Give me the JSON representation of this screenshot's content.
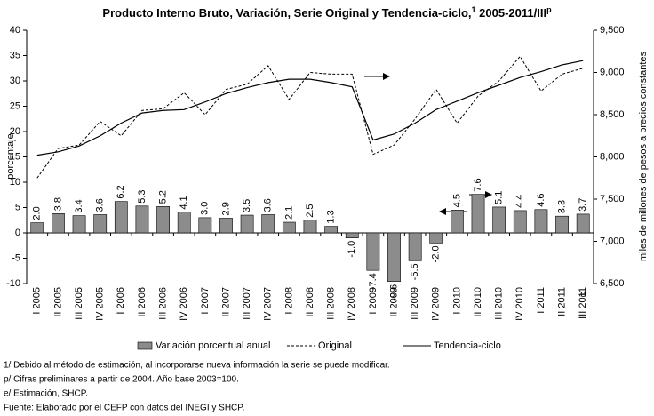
{
  "chart_data": {
    "type": "bar",
    "title": [
      "Producto Interno Bruto, Variación, Serie Original y Tendencia-ciclo,",
      "1",
      " 2005-2011/III",
      "p"
    ],
    "categories": [
      "I 2005",
      "II 2005",
      "III 2005",
      "IV 2005",
      "I 2006",
      "II 2006",
      "III 2006",
      "IV 2006",
      "I 2007",
      "II 2007",
      "III 2007",
      "IV 2007",
      "I 2008",
      "II 2008",
      "III 2008",
      "IV 2008",
      "I 2009",
      "II 2009",
      "III 2009",
      "IV 2009",
      "I 2010",
      "II 2010",
      "III 2010",
      "IV 2010",
      "I 2011",
      "II 2011",
      "III 2011"
    ],
    "annotation": "e",
    "ylabel": "porcentaje",
    "y2label": "miles de millones de pesos a precios constantes",
    "ylim": [
      -10,
      40
    ],
    "yticks": [
      -10,
      -5,
      0,
      5,
      10,
      15,
      20,
      25,
      30,
      35,
      40
    ],
    "y2lim": [
      6500,
      9500
    ],
    "y2ticks": [
      {
        "value": 6500,
        "label": "6,500"
      },
      {
        "value": 7000,
        "label": "7,000"
      },
      {
        "value": 7500,
        "label": "7,500"
      },
      {
        "value": 8000,
        "label": "8,000"
      },
      {
        "value": 8500,
        "label": "8,500"
      },
      {
        "value": 9000,
        "label": "9,000"
      },
      {
        "value": 9500,
        "label": "9,500"
      }
    ],
    "series": [
      {
        "name": "Variación porcentual anual",
        "type": "bar",
        "color": "#8c8c8c",
        "values": [
          2.0,
          3.8,
          3.4,
          3.6,
          6.2,
          5.3,
          5.2,
          4.1,
          3.0,
          2.9,
          3.5,
          3.6,
          2.1,
          2.5,
          1.3,
          -1.0,
          -7.4,
          -9.6,
          -5.5,
          -2.0,
          4.5,
          7.6,
          5.1,
          4.4,
          4.6,
          3.3,
          3.7
        ],
        "value_labels": [
          "2.0",
          "3.8",
          "3.4",
          "3.6",
          "6.2",
          "5.3",
          "5.2",
          "4.1",
          "3.0",
          "2.9",
          "3.5",
          "3.6",
          "2.1",
          "2.5",
          "1.3",
          "-1.0",
          "-7.4",
          "-9.6",
          "-5.5",
          "-2.0",
          "4.5",
          "7.6",
          "5.1",
          "4.4",
          "4.6",
          "3.3",
          "3.7"
        ]
      },
      {
        "name": "Original",
        "type": "line",
        "axis": "y2",
        "style": "dashed",
        "color": "#000000",
        "values": [
          7750,
          8100,
          8140,
          8420,
          8250,
          8550,
          8570,
          8760,
          8500,
          8800,
          8860,
          9080,
          8680,
          9000,
          8980,
          8980,
          8030,
          8140,
          8450,
          8800,
          8400,
          8720,
          8900,
          9190,
          8780,
          8980,
          9050
        ]
      },
      {
        "name": "Tendencia-ciclo",
        "type": "line",
        "axis": "y2",
        "style": "solid",
        "color": "#000000",
        "values": [
          8020,
          8060,
          8130,
          8250,
          8400,
          8520,
          8550,
          8560,
          8650,
          8750,
          8820,
          8880,
          8920,
          8920,
          8880,
          8830,
          8200,
          8270,
          8400,
          8560,
          8660,
          8760,
          8850,
          8940,
          9010,
          9090,
          9140
        ]
      }
    ],
    "notes": [
      "1/  Debido al método de estimación, al incorporarse nueva información la serie se puede modificar.",
      "p/ Cifras preliminares a partir de 2004. Año base 2003=100.",
      "e/ Estimación, SHCP.",
      "Fuente: Elaborado por el CEFP con datos del INEGI y SHCP."
    ]
  }
}
